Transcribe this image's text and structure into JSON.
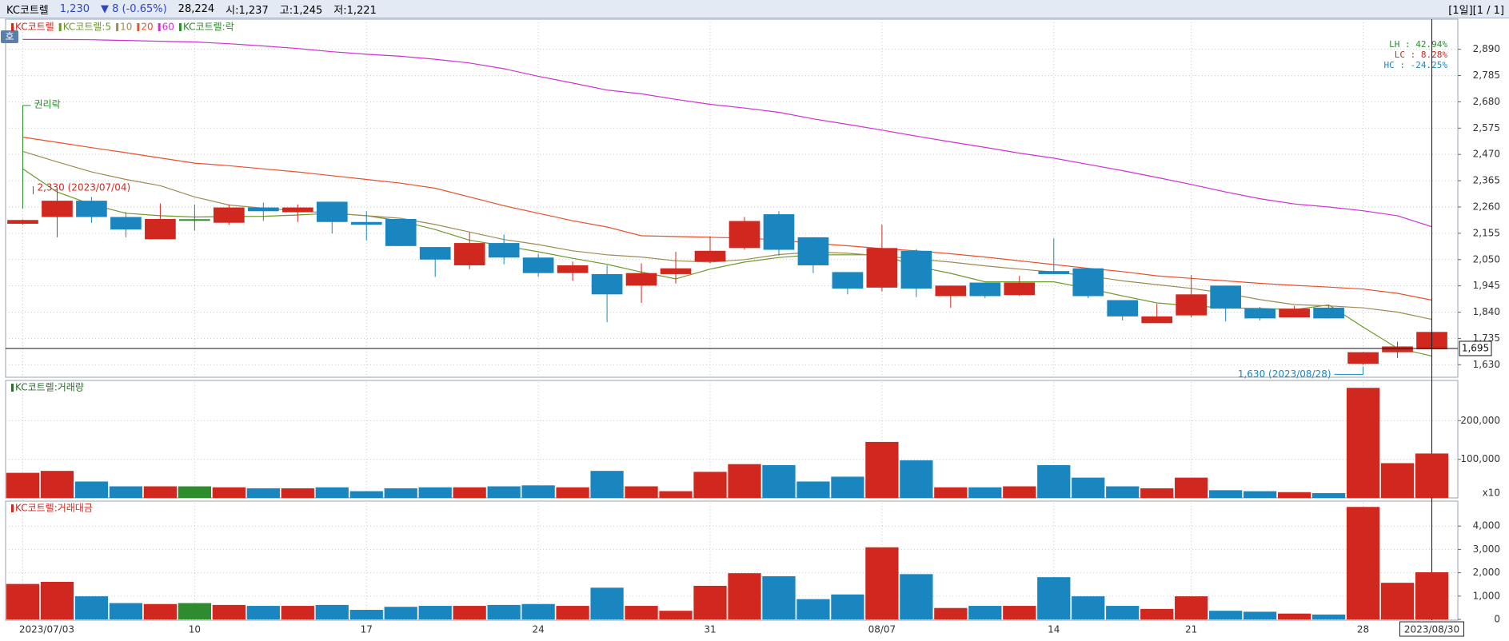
{
  "header": {
    "name": "KC코트렐",
    "price": "1,230",
    "change": "▼ 8 (-0.65%)",
    "volume": "28,224",
    "open": "시:1,237",
    "high": "고:1,245",
    "low": "저:1,221",
    "period": "[1일][1 / 1]",
    "button": "호"
  },
  "chart_data": [
    {
      "type": "candlestick",
      "title": "KC코트렐",
      "up_color": "#d0281e",
      "down_color": "#1a86c0",
      "flat_color": "#2e8b2e",
      "open": [
        2193,
        2220,
        2285,
        2220,
        2131,
        2208,
        2197,
        2258,
        2239,
        2281,
        2200,
        2212,
        2100,
        2027,
        2116,
        2058,
        1996,
        1992,
        1946,
        1992,
        2042,
        2096,
        2231,
        2139,
        2000,
        1938,
        2085,
        1904,
        1958,
        1908,
        2004,
        2015,
        1888,
        1796,
        1827,
        1946,
        1854,
        1819,
        1858,
        1634,
        1680,
        1692
      ],
      "high": [
        2210,
        2330,
        2300,
        2240,
        2274,
        2270,
        2270,
        2277,
        2270,
        2281,
        2243,
        2212,
        2100,
        2158,
        2150,
        2073,
        2042,
        2027,
        2035,
        2081,
        2143,
        2220,
        2243,
        2139,
        2000,
        2189,
        2092,
        1946,
        1958,
        1985,
        2135,
        2015,
        1888,
        1873,
        1988,
        1946,
        1861,
        1865,
        1865,
        1680,
        1722,
        1761
      ],
      "low": [
        2190,
        2139,
        2197,
        2139,
        2131,
        2166,
        2189,
        2204,
        2200,
        2154,
        2127,
        2104,
        1981,
        2012,
        2031,
        1981,
        1965,
        1800,
        1877,
        1954,
        2035,
        2089,
        2066,
        1996,
        1911,
        1923,
        1900,
        1857,
        1896,
        1904,
        1992,
        1896,
        1807,
        1796,
        1819,
        1803,
        1807,
        1819,
        1815,
        1630,
        1657,
        1692
      ],
      "close": [
        2208,
        2285,
        2220,
        2170,
        2212,
        2208,
        2258,
        2243,
        2258,
        2200,
        2189,
        2104,
        2050,
        2116,
        2058,
        1996,
        2027,
        1911,
        1996,
        2015,
        2085,
        2204,
        2089,
        2027,
        1934,
        2096,
        1934,
        1946,
        1904,
        1958,
        1992,
        1904,
        1823,
        1823,
        1911,
        1854,
        1815,
        1854,
        1815,
        1680,
        1703,
        1761
      ],
      "series": [
        {
          "name": "KC코트렐:5",
          "color": "#6a9a2a",
          "values": [
            2412,
            2320,
            2270,
            2235,
            2225,
            2220,
            2222,
            2223,
            2228,
            2235,
            2225,
            2204,
            2170,
            2127,
            2105,
            2081,
            2055,
            2031,
            2000,
            1973,
            2012,
            2040,
            2058,
            2069,
            2069,
            2069,
            2023,
            1995,
            1961,
            1961,
            1961,
            1935,
            1905,
            1877,
            1865,
            1857,
            1855,
            1850,
            1869,
            1780,
            1696,
            1665
          ]
        },
        {
          "name": "10",
          "color": "#a08a50",
          "values": [
            2482,
            2440,
            2400,
            2370,
            2345,
            2300,
            2268,
            2255,
            2245,
            2235,
            2225,
            2215,
            2190,
            2160,
            2130,
            2110,
            2085,
            2069,
            2060,
            2045,
            2040,
            2050,
            2070,
            2080,
            2075,
            2065,
            2052,
            2040,
            2025,
            2012,
            2000,
            1985,
            1965,
            1950,
            1935,
            1915,
            1890,
            1870,
            1865,
            1857,
            1840,
            1811
          ]
        },
        {
          "name": "20",
          "color": "#e8502a",
          "values": [
            2539,
            2518,
            2497,
            2477,
            2456,
            2435,
            2425,
            2412,
            2400,
            2385,
            2370,
            2355,
            2335,
            2300,
            2265,
            2235,
            2205,
            2180,
            2145,
            2142,
            2139,
            2136,
            2128,
            2115,
            2105,
            2094,
            2085,
            2073,
            2060,
            2045,
            2030,
            2015,
            2002,
            1985,
            1975,
            1965,
            1955,
            1947,
            1940,
            1932,
            1915,
            1888
          ]
        },
        {
          "name": "60",
          "color": "#d030d0",
          "values": [
            2929,
            2929,
            2928,
            2925,
            2922,
            2919,
            2912,
            2903,
            2893,
            2880,
            2870,
            2862,
            2850,
            2835,
            2812,
            2782,
            2755,
            2727,
            2712,
            2690,
            2670,
            2655,
            2638,
            2612,
            2590,
            2567,
            2543,
            2520,
            2498,
            2475,
            2455,
            2430,
            2405,
            2378,
            2350,
            2320,
            2293,
            2272,
            2260,
            2245,
            2225,
            2181
          ]
        }
      ],
      "event_legend": "KC코트렐:락",
      "event_color": "#2e8b2e",
      "event_label": "권리락",
      "annotations": [
        {
          "text": "2,330 (2023/07/04)",
          "value": 2330,
          "at": "high",
          "color": "#d0281e"
        },
        {
          "text": "1,630 (2023/08/28)",
          "value": 1630,
          "at": "low",
          "color": "#1a86c0"
        }
      ],
      "stats": [
        {
          "text": "LH :  42.94%",
          "color": "#2e8b2e"
        },
        {
          "text": "LC :   8.28%",
          "color": "#d0281e"
        },
        {
          "text": "HC : -24.25%",
          "color": "#1a86c0"
        }
      ],
      "crosshair": {
        "value": 1695,
        "label": "1,695"
      },
      "ylim": [
        1580,
        3010
      ],
      "yticks": [
        {
          "value": 1630,
          "label": "1,630"
        },
        {
          "value": 1735,
          "label": "1,735"
        },
        {
          "value": 1840,
          "label": "1,840"
        },
        {
          "value": 1945,
          "label": "1,945"
        },
        {
          "value": 2050,
          "label": "2,050"
        },
        {
          "value": 2155,
          "label": "2,155"
        },
        {
          "value": 2260,
          "label": "2,260"
        },
        {
          "value": 2365,
          "label": "2,365"
        },
        {
          "value": 2470,
          "label": "2,470"
        },
        {
          "value": 2575,
          "label": "2,575"
        },
        {
          "value": 2680,
          "label": "2,680"
        },
        {
          "value": 2785,
          "label": "2,785"
        },
        {
          "value": 2890,
          "label": "2,890"
        }
      ],
      "grid": true
    },
    {
      "type": "bar",
      "title": "KC코트렐:거래량",
      "title_color": "#2e6b2e",
      "values": [
        65000,
        70000,
        42500,
        30000,
        30000,
        30000,
        27500,
        25000,
        25000,
        27500,
        17500,
        25000,
        27500,
        27500,
        30000,
        32500,
        27500,
        70000,
        30000,
        17500,
        67500,
        87500,
        85000,
        42500,
        55000,
        145000,
        97500,
        27500,
        27500,
        30000,
        85000,
        52500,
        30000,
        25000,
        52500,
        20000,
        17500,
        15000,
        12500,
        285000,
        90000,
        115000
      ],
      "ylim": [
        0,
        300000
      ],
      "yticks": [
        {
          "value": 100000,
          "label": "100,000"
        },
        {
          "value": 200000,
          "label": "200,000"
        }
      ],
      "unit_label": "x10",
      "grid": true
    },
    {
      "type": "bar",
      "title": "KC코트렐:거래대금",
      "title_color": "#d0281e",
      "categories": [
        "2023/07/03",
        null,
        null,
        null,
        null,
        "10",
        null,
        null,
        null,
        null,
        "17",
        null,
        null,
        null,
        null,
        "24",
        null,
        null,
        null,
        null,
        "31",
        null,
        null,
        null,
        null,
        "08/07",
        null,
        null,
        null,
        null,
        "14",
        null,
        null,
        null,
        "21",
        null,
        null,
        null,
        null,
        "28",
        null,
        "2023/08/30"
      ],
      "values": [
        1520,
        1610,
        990,
        700,
        660,
        700,
        620,
        580,
        580,
        620,
        410,
        540,
        580,
        580,
        620,
        660,
        580,
        1360,
        580,
        370,
        1440,
        1980,
        1850,
        870,
        1070,
        3090,
        1940,
        490,
        580,
        580,
        1810,
        990,
        580,
        450,
        990,
        370,
        330,
        250,
        210,
        4820,
        1570,
        2020
      ],
      "ylim": [
        0,
        5000
      ],
      "yticks": [
        0,
        {
          "value": 1000,
          "label": "1,000"
        },
        {
          "value": 2000,
          "label": "2,000"
        },
        {
          "value": 3000,
          "label": "3,000"
        },
        {
          "value": 4000,
          "label": "4,000"
        }
      ],
      "grid": true
    }
  ]
}
